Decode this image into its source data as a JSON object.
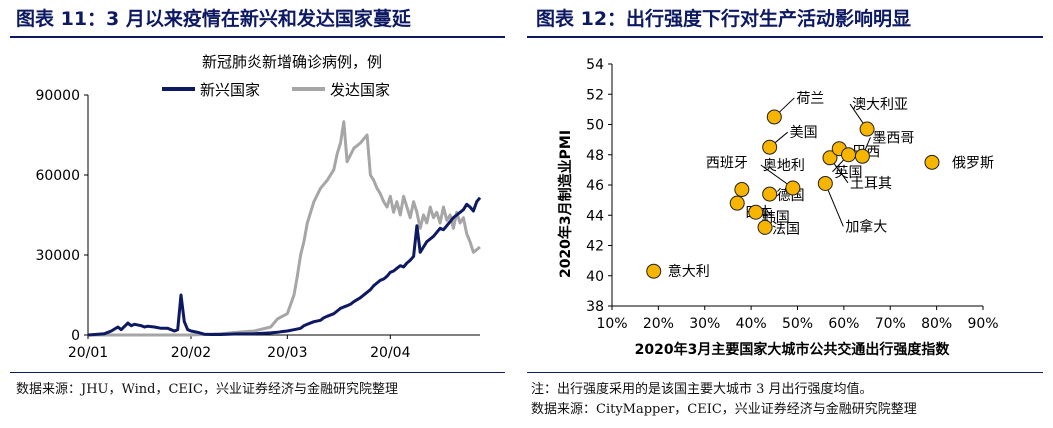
{
  "left": {
    "panel_title": "图表 11：3 月以来疫情在新兴和发达国家蔓延",
    "source": "数据来源：JHU，Wind，CEIC，兴业证券经济与金融研究院整理"
  },
  "right": {
    "panel_title": "图表 12：出行强度下行对生产活动影响明显",
    "note": "注：出行强度采用的是该国主要大城市 3 月出行强度均值。",
    "source": "数据来源：CityMapper，CEIC，兴业证券经济与金融研究院整理"
  },
  "colors": {
    "brand": "#0d1a63",
    "emerging": "#0d1a63",
    "developed": "#a6a6a6",
    "dot": "#f7b500",
    "dot_edge": "#222222"
  },
  "chart_data": [
    {
      "type": "line",
      "title": "新冠肺炎新增确诊病例，例",
      "xlabel": "",
      "ylabel": "",
      "x_ticks": [
        "20/01",
        "20/02",
        "20/03",
        "20/04"
      ],
      "y_ticks": [
        "0",
        "30000",
        "60000",
        "90000"
      ],
      "ylim": [
        0,
        90000
      ],
      "x_unit": "days since 2020-01-01 (20/01 = 0, 20/02 = 31, 20/03 = 60, 20/04 = 91)",
      "xlim": [
        0,
        118
      ],
      "grid": false,
      "legend": "top",
      "series": [
        {
          "name": "新兴国家",
          "color": "#0d1a63",
          "x": [
            0,
            5,
            7,
            9,
            10,
            12,
            13,
            14,
            16,
            17,
            18,
            20,
            22,
            24,
            26,
            27,
            28,
            29,
            30,
            31,
            33,
            35,
            37,
            40,
            45,
            50,
            55,
            57,
            58,
            60,
            62,
            64,
            65,
            66,
            68,
            70,
            71,
            72,
            74,
            75,
            76,
            78,
            79,
            80,
            82,
            84,
            85,
            86,
            87,
            88,
            89,
            90,
            91,
            92,
            93,
            94,
            95,
            96,
            97,
            98,
            99,
            100,
            101,
            102,
            103,
            104,
            105,
            106,
            107,
            108,
            109,
            110,
            111,
            112,
            113,
            114,
            115,
            116,
            117,
            118
          ],
          "y": [
            0,
            500,
            1500,
            3000,
            2000,
            4500,
            3500,
            4000,
            3500,
            3000,
            3300,
            3000,
            2500,
            2500,
            1500,
            2000,
            15000,
            5000,
            2000,
            1500,
            1000,
            300,
            200,
            200,
            400,
            500,
            800,
            1000,
            1200,
            1500,
            2000,
            2500,
            3500,
            4000,
            5000,
            5500,
            6500,
            7000,
            8000,
            9000,
            10000,
            11000,
            11500,
            12500,
            14000,
            16000,
            17000,
            18500,
            19500,
            20500,
            21000,
            22000,
            23500,
            24000,
            25000,
            26000,
            25500,
            27000,
            28000,
            29500,
            41000,
            31000,
            33000,
            35000,
            36000,
            37000,
            38500,
            40000,
            39500,
            41000,
            42500,
            44000,
            45000,
            46000,
            47000,
            49000,
            48000,
            46500,
            50000,
            51500
          ]
        },
        {
          "name": "发达国家",
          "color": "#a6a6a6",
          "x": [
            0,
            10,
            20,
            30,
            35,
            40,
            45,
            50,
            55,
            57,
            60,
            62,
            63,
            64,
            65,
            66,
            68,
            70,
            72,
            74,
            75,
            76,
            77,
            78,
            80,
            82,
            84,
            85,
            86,
            87,
            88,
            89,
            90,
            91,
            92,
            93,
            94,
            95,
            96,
            97,
            98,
            99,
            100,
            101,
            102,
            103,
            104,
            105,
            106,
            107,
            108,
            109,
            110,
            111,
            112,
            113,
            114,
            115,
            116,
            117,
            118
          ],
          "y": [
            0,
            0,
            0,
            0,
            200,
            500,
            1000,
            1500,
            3000,
            6000,
            8000,
            15000,
            22000,
            30000,
            35000,
            42000,
            50000,
            55000,
            58000,
            62000,
            68000,
            72000,
            80000,
            65000,
            70000,
            72000,
            75000,
            60000,
            58000,
            55000,
            53000,
            50000,
            48000,
            52000,
            46000,
            50000,
            45000,
            52000,
            48000,
            44000,
            50000,
            46000,
            40000,
            45000,
            42000,
            48000,
            44000,
            46000,
            42000,
            48000,
            43000,
            45000,
            40000,
            46000,
            42000,
            44000,
            38000,
            35000,
            31000,
            32000,
            33000
          ]
        }
      ]
    },
    {
      "type": "scatter",
      "title": "",
      "xlabel": "2020年3月主要国家大城市公共交通出行强度指数",
      "ylabel": "2020年3月制造业PMI",
      "x_ticks": [
        "10%",
        "20%",
        "30%",
        "40%",
        "50%",
        "60%",
        "70%",
        "80%",
        "90%"
      ],
      "y_ticks": [
        "38",
        "40",
        "42",
        "44",
        "46",
        "48",
        "50",
        "52",
        "54"
      ],
      "xlim": [
        0.1,
        0.9
      ],
      "ylim": [
        38,
        54
      ],
      "grid": false,
      "points": [
        {
          "label": "意大利",
          "x": 0.19,
          "y": 40.3
        },
        {
          "label": "西班牙",
          "x": 0.38,
          "y": 45.7
        },
        {
          "label": "日本",
          "x": 0.37,
          "y": 44.8
        },
        {
          "label": "韩国",
          "x": 0.41,
          "y": 44.2
        },
        {
          "label": "法国",
          "x": 0.43,
          "y": 43.2
        },
        {
          "label": "德国",
          "x": 0.44,
          "y": 45.4
        },
        {
          "label": "荷兰",
          "x": 0.45,
          "y": 50.5
        },
        {
          "label": "美国",
          "x": 0.44,
          "y": 48.5
        },
        {
          "label": "奥地利",
          "x": 0.49,
          "y": 45.8
        },
        {
          "label": "加拿大",
          "x": 0.56,
          "y": 46.1
        },
        {
          "label": "土耳其",
          "x": 0.57,
          "y": 47.8
        },
        {
          "label": "巴西",
          "x": 0.59,
          "y": 48.4
        },
        {
          "label": "澳大利亚",
          "x": 0.65,
          "y": 49.7
        },
        {
          "label": "墨西哥",
          "x": 0.64,
          "y": 47.9
        },
        {
          "label": "英国",
          "x": 0.61,
          "y": 48.0
        },
        {
          "label": "俄罗斯",
          "x": 0.79,
          "y": 47.5
        }
      ]
    }
  ]
}
